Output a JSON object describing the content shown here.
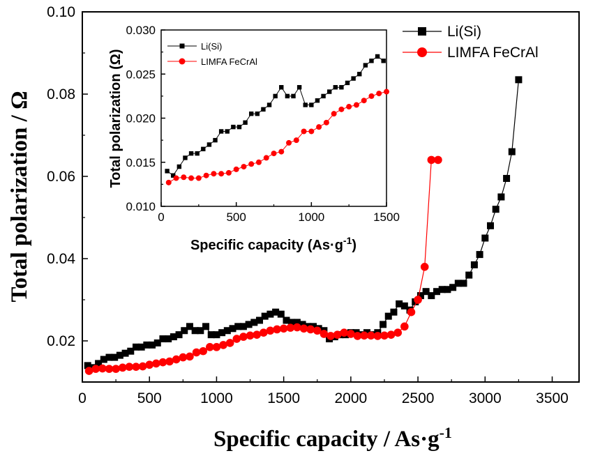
{
  "chart_data": [
    {
      "type": "line",
      "xlabel": "Specific capacity / As·g-1",
      "xlabel_main": "Specific capacity / As·g",
      "xlabel_sup": "-1",
      "ylabel": "Total polarization / Ω",
      "xlim": [
        0,
        3700
      ],
      "ylim": [
        0.01,
        0.1
      ],
      "xticks": [
        "0",
        "500",
        "1000",
        "1500",
        "2000",
        "2500",
        "3000",
        "3500"
      ],
      "yticks": [
        "0.02",
        "0.04",
        "0.06",
        "0.08",
        "0.10"
      ],
      "legend_position": "top-right",
      "series": [
        {
          "name": "Li(Si)",
          "color": "#000000",
          "marker": "square",
          "x": [
            40,
            80,
            120,
            160,
            200,
            240,
            280,
            320,
            360,
            400,
            440,
            480,
            520,
            560,
            600,
            640,
            680,
            720,
            760,
            800,
            840,
            880,
            920,
            960,
            1000,
            1040,
            1080,
            1120,
            1160,
            1200,
            1240,
            1280,
            1320,
            1360,
            1400,
            1440,
            1480,
            1520,
            1560,
            1600,
            1640,
            1680,
            1720,
            1760,
            1800,
            1840,
            1880,
            1920,
            1960,
            2000,
            2040,
            2080,
            2120,
            2160,
            2200,
            2240,
            2280,
            2320,
            2360,
            2400,
            2440,
            2480,
            2520,
            2560,
            2600,
            2640,
            2680,
            2720,
            2760,
            2800,
            2840,
            2880,
            2920,
            2960,
            3000,
            3040,
            3080,
            3120,
            3160,
            3200,
            3250
          ],
          "values": [
            0.014,
            0.0135,
            0.0145,
            0.0155,
            0.016,
            0.016,
            0.0165,
            0.017,
            0.0175,
            0.0185,
            0.0185,
            0.019,
            0.019,
            0.0195,
            0.0205,
            0.0205,
            0.021,
            0.0215,
            0.0225,
            0.0235,
            0.0225,
            0.0225,
            0.0235,
            0.0215,
            0.0215,
            0.022,
            0.0225,
            0.023,
            0.0235,
            0.0235,
            0.024,
            0.0245,
            0.025,
            0.026,
            0.0265,
            0.027,
            0.0265,
            0.025,
            0.0245,
            0.0245,
            0.024,
            0.0235,
            0.0235,
            0.023,
            0.0225,
            0.0205,
            0.021,
            0.0215,
            0.0215,
            0.022,
            0.022,
            0.0215,
            0.022,
            0.0215,
            0.022,
            0.024,
            0.026,
            0.027,
            0.029,
            0.0285,
            0.0275,
            0.0295,
            0.031,
            0.032,
            0.031,
            0.032,
            0.0325,
            0.0325,
            0.033,
            0.034,
            0.034,
            0.036,
            0.0385,
            0.041,
            0.045,
            0.048,
            0.052,
            0.055,
            0.0595,
            0.066,
            0.0835
          ]
        },
        {
          "name": "LIMFA FeCrAl",
          "color": "#ff0000",
          "marker": "circle",
          "x": [
            50,
            100,
            150,
            200,
            250,
            300,
            350,
            400,
            450,
            500,
            550,
            600,
            650,
            700,
            750,
            800,
            850,
            900,
            950,
            1000,
            1050,
            1100,
            1150,
            1200,
            1250,
            1300,
            1350,
            1400,
            1450,
            1500,
            1550,
            1600,
            1650,
            1700,
            1750,
            1800,
            1850,
            1900,
            1950,
            2000,
            2050,
            2100,
            2150,
            2200,
            2250,
            2300,
            2350,
            2400,
            2450,
            2500,
            2550,
            2600,
            2650
          ],
          "values": [
            0.0127,
            0.0132,
            0.0133,
            0.0132,
            0.0132,
            0.0135,
            0.0137,
            0.0137,
            0.0138,
            0.0142,
            0.0145,
            0.0148,
            0.015,
            0.0155,
            0.016,
            0.0162,
            0.0172,
            0.0175,
            0.0185,
            0.0185,
            0.019,
            0.0195,
            0.0205,
            0.021,
            0.0213,
            0.0215,
            0.022,
            0.0225,
            0.0228,
            0.023,
            0.0232,
            0.0233,
            0.023,
            0.0228,
            0.0225,
            0.0217,
            0.0212,
            0.0215,
            0.022,
            0.0217,
            0.0212,
            0.0213,
            0.0213,
            0.0212,
            0.0213,
            0.0215,
            0.022,
            0.0235,
            0.027,
            0.03,
            0.038,
            0.064,
            0.064
          ]
        }
      ]
    },
    {
      "type": "line",
      "xlabel": "Specific capacity (As·g-1)",
      "xlabel_main": "Specific capacity (As·g",
      "xlabel_sup": "-1",
      "xlabel_close": ")",
      "ylabel": "Total polarization (Ω)",
      "xlim": [
        0,
        1500
      ],
      "ylim": [
        0.01,
        0.03
      ],
      "xticks": [
        "0",
        "500",
        "1000",
        "1500"
      ],
      "yticks": [
        "0.010",
        "0.015",
        "0.020",
        "0.025",
        "0.030"
      ],
      "legend_position": "top-left",
      "series": [
        {
          "name": "Li(Si)",
          "color": "#000000",
          "marker": "square",
          "x": [
            40,
            80,
            120,
            160,
            200,
            240,
            280,
            320,
            360,
            400,
            440,
            480,
            520,
            560,
            600,
            640,
            680,
            720,
            760,
            800,
            840,
            880,
            920,
            960,
            1000,
            1040,
            1080,
            1120,
            1160,
            1200,
            1240,
            1280,
            1320,
            1360,
            1400,
            1440,
            1480
          ],
          "values": [
            0.014,
            0.0135,
            0.0145,
            0.0155,
            0.016,
            0.016,
            0.0165,
            0.017,
            0.0175,
            0.0185,
            0.0185,
            0.019,
            0.019,
            0.0195,
            0.0205,
            0.0205,
            0.021,
            0.0215,
            0.0225,
            0.0235,
            0.0225,
            0.0225,
            0.0235,
            0.0215,
            0.0215,
            0.022,
            0.0225,
            0.023,
            0.0235,
            0.0235,
            0.024,
            0.0245,
            0.025,
            0.026,
            0.0265,
            0.027,
            0.0265
          ]
        },
        {
          "name": "LIMFA FeCrAl",
          "color": "#ff0000",
          "marker": "circle",
          "x": [
            50,
            100,
            150,
            200,
            250,
            300,
            350,
            400,
            450,
            500,
            550,
            600,
            650,
            700,
            750,
            800,
            850,
            900,
            950,
            1000,
            1050,
            1100,
            1150,
            1200,
            1250,
            1300,
            1350,
            1400,
            1450,
            1500
          ],
          "values": [
            0.0127,
            0.0132,
            0.0133,
            0.0132,
            0.0132,
            0.0135,
            0.0137,
            0.0137,
            0.0138,
            0.0142,
            0.0145,
            0.0148,
            0.015,
            0.0155,
            0.016,
            0.0162,
            0.0172,
            0.0175,
            0.0185,
            0.0185,
            0.019,
            0.0195,
            0.0205,
            0.021,
            0.0213,
            0.0215,
            0.022,
            0.0225,
            0.0228,
            0.023
          ]
        }
      ]
    }
  ]
}
